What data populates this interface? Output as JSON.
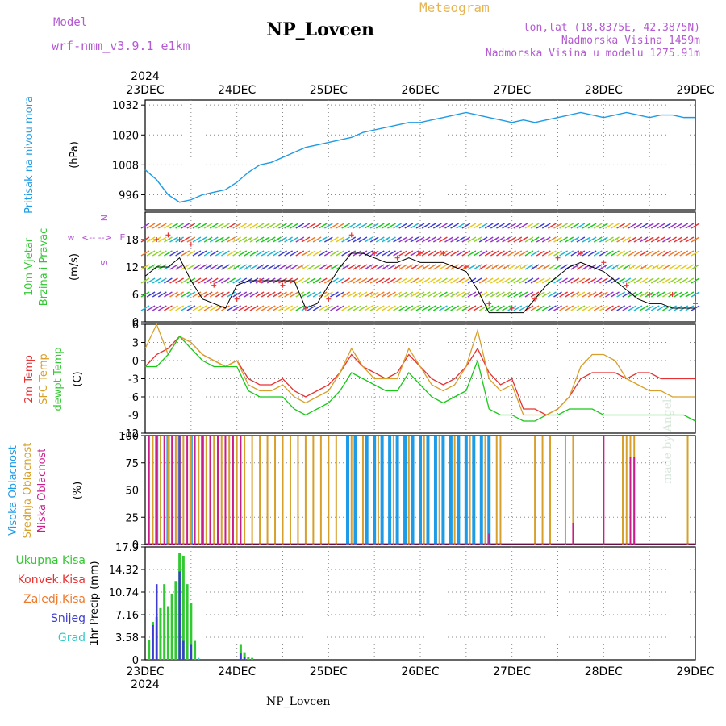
{
  "header": {
    "model_label": "Model",
    "model_value": "wrf-nmm_v3.9.1 e1km",
    "station": "NP_Lovcen",
    "meteogram_label": "Meteogram",
    "info_lines": [
      "lon,lat (18.8375E, 42.3875N)",
      "Nadmorska Visina 1459m",
      "Nadmorska Visina u modelu 1275.91m"
    ]
  },
  "footer_label": "NP_Lovcen",
  "watermark": "made by Angel",
  "time_axis": {
    "year": "2024",
    "ticks": [
      "23DEC",
      "24DEC",
      "25DEC",
      "26DEC",
      "27DEC",
      "28DEC",
      "29DEC"
    ]
  },
  "colors": {
    "pressure": "#1e9be6",
    "temp2m": "#e63232",
    "sfc_temp": "#d7a02d",
    "dewpoint": "#19c819",
    "cloud_high": "#1e9be6",
    "cloud_mid": "#d7a02d",
    "cloud_low": "#c81e8c",
    "precip_total": "#32c832",
    "precip_snow": "#3c3cd2",
    "precip_grad": "#2dc8c8",
    "precip_conv": "#e63232",
    "precip_frz": "#f07828",
    "wind_speed": "#000000",
    "wind_gust": "#e63232",
    "axis_label_purple": "#b45ad2"
  },
  "panels": {
    "pressure": {
      "ylabel_lines": [
        "Pritisak na nivou mora"
      ],
      "unit": "(hPa)",
      "ticks": [
        "1032",
        "1020",
        "1008",
        "996"
      ]
    },
    "wind": {
      "ylabel_lines": [
        "10m Vjetar",
        "Brzina i Pravac"
      ],
      "unit": "(m/s)",
      "ticks": [
        "18",
        "12",
        "6",
        "0"
      ],
      "compass": {
        "w": "w",
        "e": "E",
        "n": "N",
        "s": "S"
      }
    },
    "temperature": {
      "ylabel_lines": [
        "2m Temp",
        "SFC Temp",
        "dewpt Temp"
      ],
      "unit": "(C)",
      "ticks": [
        "6",
        "3",
        "0",
        "-3",
        "-6",
        "-9",
        "-12"
      ]
    },
    "cloud": {
      "ylabel_lines": [
        "Visoka Oblacnost",
        "Srednja Oblacnost",
        "Niska Oblacnost"
      ],
      "unit": "(%)",
      "ticks": [
        "100",
        "75",
        "50",
        "25",
        "0"
      ]
    },
    "precip": {
      "legend": [
        "Ukupna Kisa",
        "Konvek.Kisa",
        "Zaledj.Kisa",
        "Snijeg",
        "Grad"
      ],
      "ylabel": "1hr Precip (mm)",
      "ticks": [
        "17.9",
        "14.32",
        "10.74",
        "7.16",
        "3.58",
        "0"
      ]
    }
  },
  "chart_data": [
    {
      "type": "line",
      "title": "Pritisak na nivou mora",
      "ylabel": "(hPa)",
      "ylim": [
        990,
        1034
      ],
      "x_unit": "hours from 23DEC 00",
      "series": [
        {
          "x": [
            0,
            3,
            6,
            9,
            12,
            15,
            18,
            21,
            24,
            27,
            30,
            33,
            36,
            39,
            42,
            45,
            48,
            51,
            54,
            57,
            60,
            63,
            66,
            69,
            72,
            75,
            78,
            81,
            84,
            87,
            90,
            93,
            96,
            99,
            102,
            105,
            108,
            111,
            114,
            117,
            120,
            123,
            126,
            129,
            132,
            135,
            138,
            141,
            144
          ],
          "y": [
            1006,
            1002,
            996,
            993,
            994,
            996,
            997,
            998,
            1001,
            1005,
            1008,
            1009,
            1011,
            1013,
            1015,
            1016,
            1017,
            1018,
            1019,
            1021,
            1022,
            1023,
            1024,
            1025,
            1025,
            1026,
            1027,
            1028,
            1029,
            1028,
            1027,
            1026,
            1025,
            1026,
            1025,
            1026,
            1027,
            1028,
            1029,
            1028,
            1027,
            1028,
            1029,
            1028,
            1027,
            1028,
            1028,
            1027,
            1027
          ]
        }
      ]
    },
    {
      "type": "line",
      "title": "10m Vjetar Brzina i Pravac",
      "ylabel": "(m/s)",
      "ylim": [
        0,
        24
      ],
      "x_unit": "hours from 23DEC 00",
      "series": [
        {
          "x": [
            0,
            3,
            6,
            9,
            12,
            15,
            18,
            21,
            24,
            27,
            30,
            33,
            36,
            39,
            42,
            45,
            48,
            51,
            54,
            57,
            60,
            63,
            66,
            69,
            72,
            75,
            78,
            81,
            84,
            87,
            90,
            93,
            96,
            99,
            102,
            105,
            108,
            111,
            114,
            117,
            120,
            123,
            126,
            129,
            132,
            135,
            138,
            141,
            144
          ],
          "y": [
            10,
            12,
            12,
            14,
            9,
            5,
            4,
            3,
            8,
            9,
            9,
            9,
            9,
            9,
            3,
            4,
            8,
            12,
            15,
            15,
            14,
            13,
            13,
            14,
            13,
            13,
            13,
            12,
            11,
            7,
            2,
            2,
            2,
            2,
            5,
            8,
            10,
            12,
            13,
            12,
            11,
            9,
            7,
            5,
            4,
            4,
            3,
            3,
            3
          ]
        },
        {
          "x": [
            3,
            6,
            9,
            12,
            18,
            24,
            30,
            36,
            42,
            48,
            54,
            60,
            66,
            72,
            78,
            84,
            90,
            96,
            102,
            108,
            114,
            120,
            126,
            132,
            138,
            144
          ],
          "y": [
            18,
            19,
            18,
            17,
            8,
            5,
            9,
            8,
            3,
            5,
            19,
            15,
            14,
            15,
            15,
            12,
            4,
            3,
            5,
            14,
            15,
            13,
            8,
            6,
            6,
            4
          ]
        }
      ]
    },
    {
      "type": "line",
      "title": "2m Temp / SFC Temp / dewpt Temp",
      "ylabel": "(C)",
      "ylim": [
        -12,
        6
      ],
      "x_unit": "hours from 23DEC 00",
      "series": [
        {
          "x": [
            0,
            3,
            6,
            9,
            12,
            15,
            18,
            21,
            24,
            27,
            30,
            33,
            36,
            39,
            42,
            45,
            48,
            51,
            54,
            57,
            60,
            63,
            66,
            69,
            72,
            75,
            78,
            81,
            84,
            87,
            90,
            93,
            96,
            99,
            102,
            105,
            108,
            111,
            114,
            117,
            120,
            123,
            126,
            129,
            132,
            135,
            138,
            141,
            144
          ],
          "y": [
            -1,
            1,
            2,
            4,
            3,
            1,
            0,
            -1,
            0,
            -3,
            -4,
            -4,
            -3,
            -5,
            -6,
            -5,
            -4,
            -2,
            1,
            -1,
            -2,
            -3,
            -2,
            1,
            -1,
            -3,
            -4,
            -3,
            -1,
            2,
            -2,
            -4,
            -3,
            -8,
            -8,
            -9,
            -8,
            -6,
            -3,
            -2,
            -2,
            -2,
            -3,
            -2,
            -2,
            -3,
            -3,
            -3,
            -3
          ]
        },
        {
          "x": [
            0,
            3,
            6,
            9,
            12,
            15,
            18,
            21,
            24,
            27,
            30,
            33,
            36,
            39,
            42,
            45,
            48,
            51,
            54,
            57,
            60,
            63,
            66,
            69,
            72,
            75,
            78,
            81,
            84,
            87,
            90,
            93,
            96,
            99,
            102,
            105,
            108,
            111,
            114,
            117,
            120,
            123,
            126,
            129,
            132,
            135,
            138,
            141,
            144
          ],
          "y": [
            2,
            6,
            1,
            4,
            3,
            1,
            0,
            -1,
            0,
            -4,
            -5,
            -5,
            -4,
            -6,
            -7,
            -6,
            -5,
            -2,
            2,
            -1,
            -3,
            -3,
            -3,
            2,
            -1,
            -4,
            -5,
            -4,
            -1,
            5,
            -3,
            -5,
            -4,
            -9,
            -9,
            -9,
            -8,
            -6,
            -1,
            1,
            1,
            0,
            -3,
            -4,
            -5,
            -5,
            -6,
            -6,
            -6
          ]
        },
        {
          "x": [
            0,
            3,
            6,
            9,
            12,
            15,
            18,
            21,
            24,
            27,
            30,
            33,
            36,
            39,
            42,
            45,
            48,
            51,
            54,
            57,
            60,
            63,
            66,
            69,
            72,
            75,
            78,
            81,
            84,
            87,
            90,
            93,
            96,
            99,
            102,
            105,
            108,
            111,
            114,
            117,
            120,
            123,
            126,
            129,
            132,
            135,
            138,
            141,
            144
          ],
          "y": [
            -1,
            -1,
            1,
            4,
            2,
            0,
            -1,
            -1,
            -1,
            -5,
            -6,
            -6,
            -6,
            -8,
            -9,
            -8,
            -7,
            -5,
            -2,
            -3,
            -4,
            -5,
            -5,
            -2,
            -4,
            -6,
            -7,
            -6,
            -5,
            0,
            -8,
            -9,
            -9,
            -10,
            -10,
            -9,
            -9,
            -8,
            -8,
            -8,
            -9,
            -9,
            -9,
            -9,
            -9,
            -9,
            -9,
            -9,
            -10
          ]
        }
      ]
    },
    {
      "type": "bar",
      "title": "Visoka / Srednja / Niska Oblacnost",
      "ylabel": "(%)",
      "ylim": [
        0,
        100
      ],
      "x_unit": "hours from 23DEC 00",
      "series": [
        {
          "name": "Visoka Oblacnost",
          "x": [
            3,
            6,
            9,
            12,
            15,
            53,
            55,
            58,
            60,
            62,
            64,
            66,
            68,
            70,
            72,
            74,
            76,
            78,
            80,
            82,
            84,
            86,
            88,
            90
          ],
          "values": [
            100,
            100,
            100,
            100,
            100,
            100,
            100,
            100,
            100,
            100,
            100,
            100,
            100,
            100,
            100,
            100,
            100,
            100,
            100,
            100,
            100,
            100,
            100,
            100
          ]
        },
        {
          "name": "Srednja Oblacnost",
          "x": [
            2,
            4,
            6,
            8,
            10,
            12,
            14,
            16,
            18,
            20,
            22,
            24,
            26,
            28,
            30,
            32,
            34,
            36,
            38,
            40,
            42,
            44,
            46,
            48,
            50,
            54,
            57,
            61,
            65,
            69,
            73,
            77,
            81,
            85,
            89,
            92,
            93,
            102,
            104,
            106,
            110,
            112,
            125,
            126,
            127,
            128,
            142
          ],
          "values": [
            100,
            100,
            100,
            100,
            100,
            100,
            100,
            100,
            100,
            100,
            100,
            100,
            100,
            100,
            100,
            100,
            100,
            100,
            100,
            100,
            100,
            100,
            100,
            100,
            100,
            100,
            100,
            100,
            100,
            100,
            100,
            100,
            100,
            100,
            100,
            100,
            100,
            100,
            100,
            100,
            100,
            100,
            100,
            100,
            100,
            100,
            100
          ]
        },
        {
          "name": "Niska Oblacnost",
          "x": [
            1,
            3,
            5,
            7,
            9,
            11,
            13,
            15,
            17,
            19,
            21,
            23,
            25,
            90,
            112,
            120,
            127,
            128
          ],
          "values": [
            100,
            100,
            100,
            100,
            100,
            100,
            100,
            100,
            100,
            100,
            100,
            100,
            100,
            10,
            20,
            100,
            80,
            80
          ]
        }
      ]
    },
    {
      "type": "bar",
      "title": "1hr Precip",
      "ylabel": "1hr Precip (mm)",
      "ylim": [
        0,
        17.9
      ],
      "x_unit": "hours from 23DEC 00",
      "series": [
        {
          "name": "Ukupna Kisa",
          "x": [
            1,
            2,
            3,
            4,
            5,
            6,
            7,
            8,
            9,
            10,
            11,
            12,
            13,
            25,
            26,
            27,
            28
          ],
          "values": [
            3.2,
            6,
            6.8,
            8.2,
            12,
            8.5,
            10.5,
            12.5,
            17,
            16.5,
            12,
            9,
            3,
            2.5,
            1.2,
            0.5,
            0.3
          ]
        },
        {
          "name": "Snijeg",
          "x": [
            2,
            3,
            9,
            10,
            12,
            25,
            26
          ],
          "values": [
            5.5,
            12,
            14,
            3,
            2.5,
            1,
            0.5
          ]
        },
        {
          "name": "Grad",
          "x": [
            14
          ],
          "values": [
            0.3
          ]
        }
      ]
    }
  ]
}
